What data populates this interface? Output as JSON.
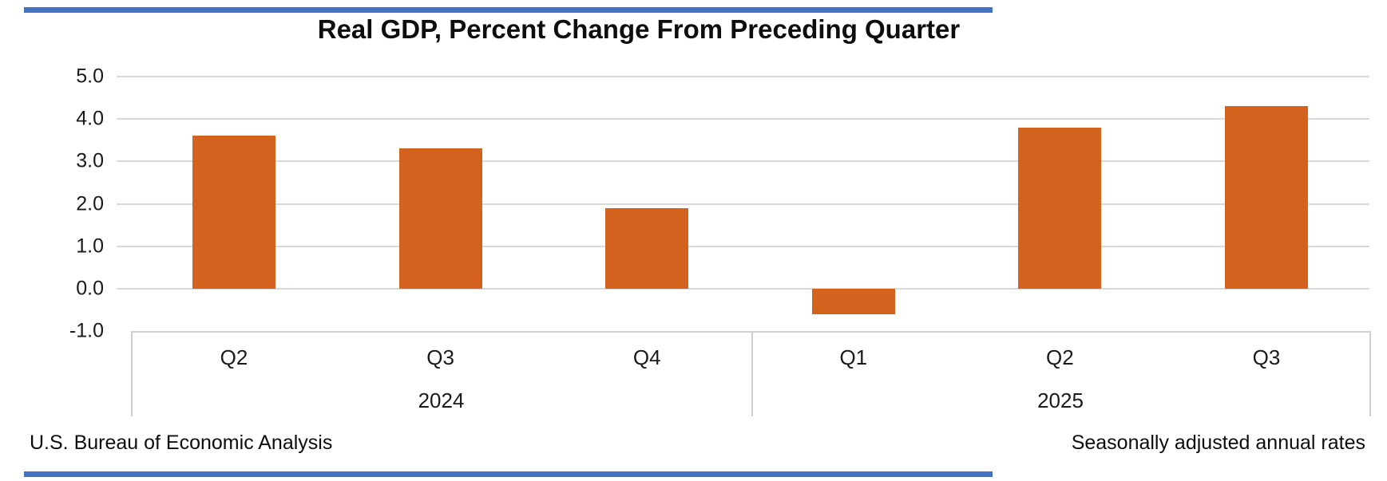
{
  "title": "Real GDP, Percent Change From Preceding Quarter",
  "source": "U.S. Bureau of Economic Analysis",
  "note": "Seasonally adjusted annual rates",
  "colors": {
    "bar": "#D2621D",
    "gridline": "#D9D9D9",
    "box_border": "#D0CECE",
    "rule": "#4472C4",
    "text": "#000000"
  },
  "chart_data": {
    "type": "bar",
    "title": "Real GDP, Percent Change From Preceding Quarter",
    "categories": [
      "Q2 2024",
      "Q3 2024",
      "Q4 2024",
      "Q1 2025",
      "Q2 2025",
      "Q3 2025"
    ],
    "x_groups": [
      {
        "year": "2024",
        "quarters": [
          "Q2",
          "Q3",
          "Q4"
        ]
      },
      {
        "year": "2025",
        "quarters": [
          "Q1",
          "Q2",
          "Q3"
        ]
      }
    ],
    "values": [
      3.6,
      3.3,
      1.9,
      -0.6,
      3.8,
      4.3
    ],
    "ylim": [
      -1.0,
      5.0
    ],
    "yticks": [
      5.0,
      4.0,
      3.0,
      2.0,
      1.0,
      0.0,
      -1.0
    ],
    "grid": true,
    "legend": false,
    "bar_color": "#D2621D",
    "source": "U.S. Bureau of Economic Analysis",
    "note": "Seasonally adjusted annual rates"
  }
}
